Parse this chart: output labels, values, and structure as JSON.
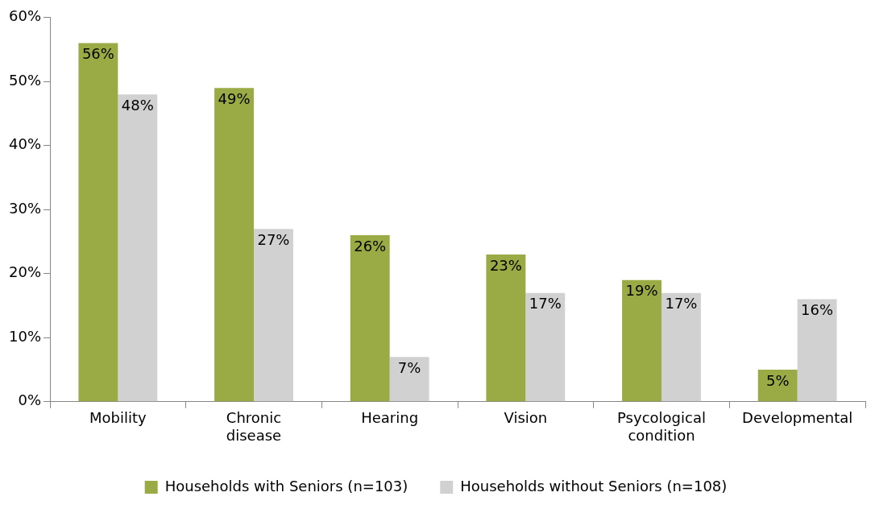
{
  "chart_data": {
    "type": "bar",
    "categories": [
      "Mobility",
      "Chronic disease",
      "Hearing",
      "Vision",
      "Psycological condition",
      "Developmental"
    ],
    "series": [
      {
        "name": "Households with Seniors (n=103)",
        "color": "#9aab45",
        "values": [
          56,
          49,
          26,
          23,
          19,
          5
        ],
        "value_labels": [
          "56%",
          "49%",
          "26%",
          "23%",
          "19%",
          "5%"
        ]
      },
      {
        "name": "Households without Seniors (n=108)",
        "color": "#d1d1d1",
        "values": [
          48,
          27,
          7,
          17,
          17,
          16
        ],
        "value_labels": [
          "48%",
          "27%",
          "7%",
          "17%",
          "17%",
          "16%"
        ]
      }
    ],
    "ylim": [
      0,
      60
    ],
    "yticks": [
      {
        "value": 0,
        "label": "0%"
      },
      {
        "value": 10,
        "label": "10%"
      },
      {
        "value": 20,
        "label": "20%"
      },
      {
        "value": 30,
        "label": "30%"
      },
      {
        "value": 40,
        "label": "40%"
      },
      {
        "value": 50,
        "label": "50%"
      },
      {
        "value": 60,
        "label": "60%"
      }
    ],
    "grid": false,
    "legend": "bottom"
  }
}
